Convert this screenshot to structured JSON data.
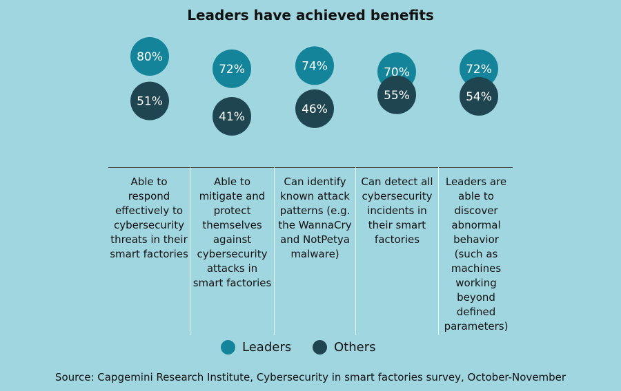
{
  "chart_data": {
    "type": "scatter",
    "title": "Leaders have achieved benefits",
    "categories": [
      "Able to respond effectively to cybersecurity threats in their smart factories",
      "Able to mitigate and protect themselves against cybersecurity attacks in smart factories",
      "Can identify known attack patterns (e.g. the WannaCry and NotPetya malware)",
      "Can detect all cybersecurity incidents in their smart factories",
      "Leaders are able to discover abnormal behavior (such as machines working beyond defined parameters)"
    ],
    "series": [
      {
        "name": "Leaders",
        "values": [
          80,
          72,
          74,
          70,
          72
        ],
        "labels": [
          "80%",
          "72%",
          "74%",
          "70%",
          "72%"
        ],
        "color": "#13849a"
      },
      {
        "name": "Others",
        "values": [
          51,
          41,
          46,
          55,
          54
        ],
        "labels": [
          "51%",
          "41%",
          "46%",
          "55%",
          "54%"
        ],
        "color": "#1f4650"
      }
    ],
    "unit": "%",
    "legend": "bottom",
    "grid": false
  },
  "source": "Source: Capgemini Research Institute, Cybersecurity in smart factories survey, October-November",
  "colors": {
    "background": "#a0d6e0",
    "leaders": "#13849a",
    "others": "#1f4650"
  }
}
